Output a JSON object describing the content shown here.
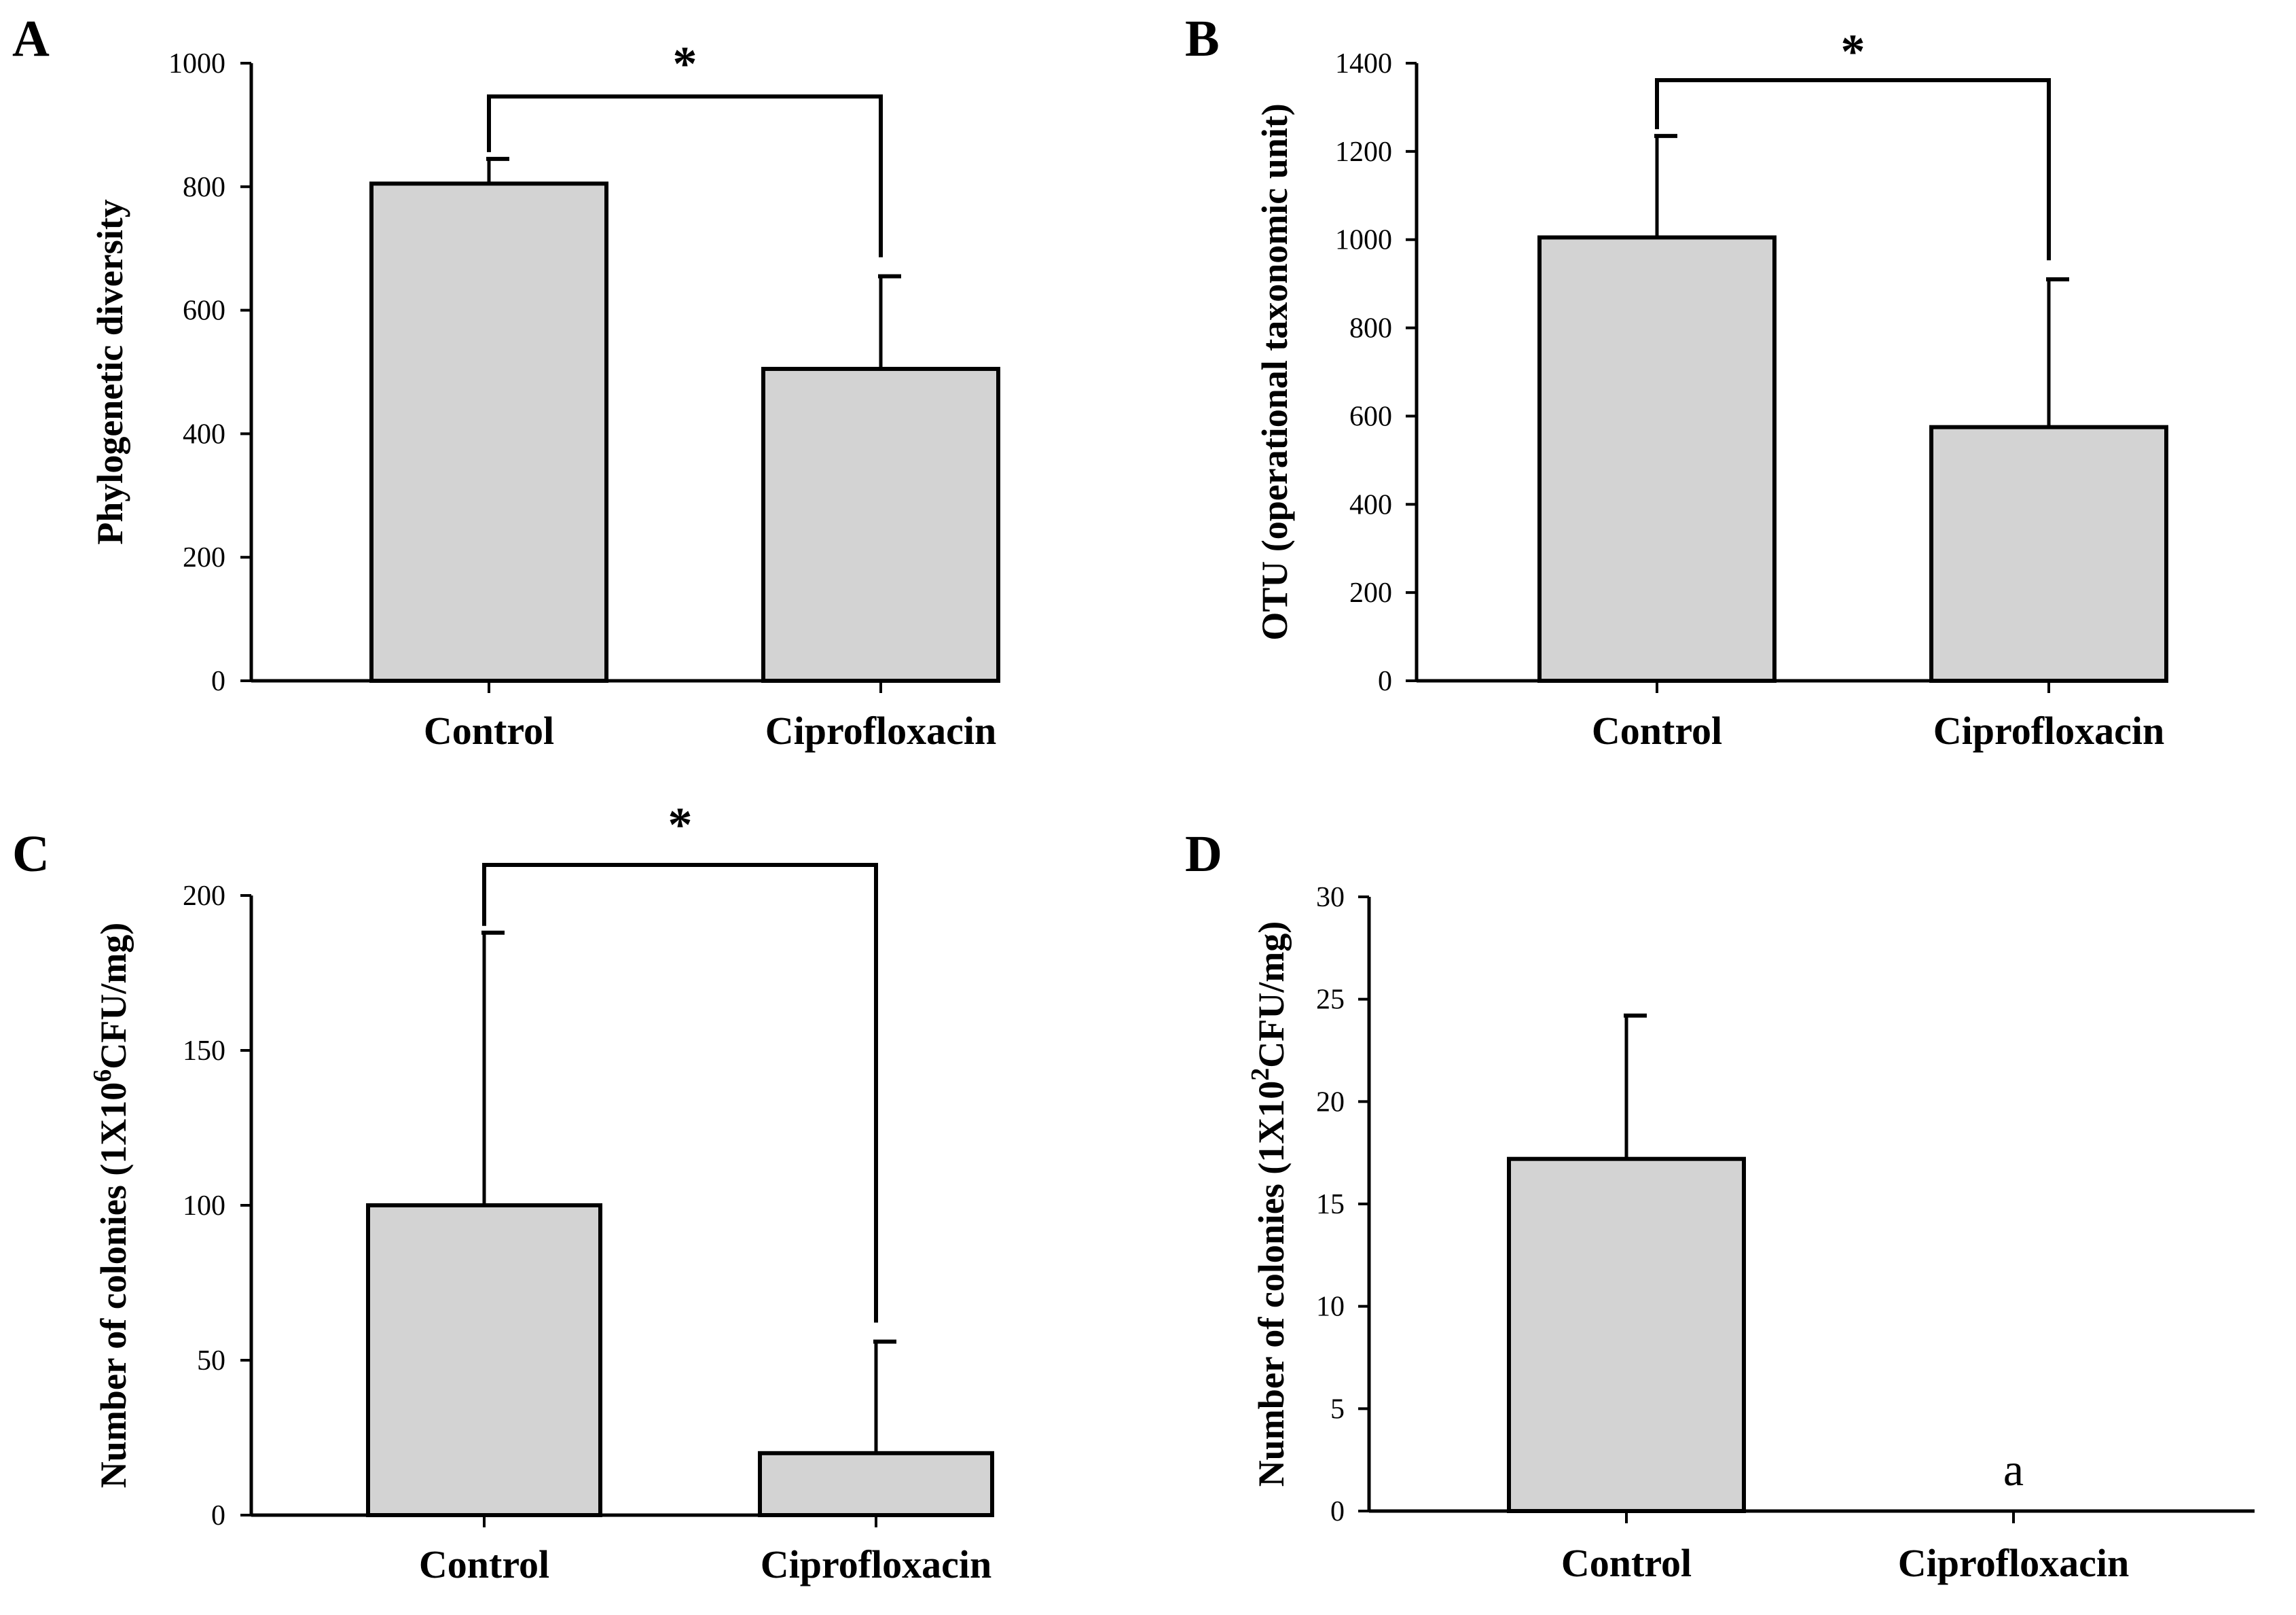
{
  "chart_data": [
    {
      "panel": "A",
      "type": "bar",
      "categories": [
        "Control",
        "Ciprofloxacin"
      ],
      "values": [
        805,
        505
      ],
      "error_upper": [
        845,
        655
      ],
      "ylabel": "Phylogenetic diversity",
      "ylim": [
        0,
        1000
      ],
      "yticks": [
        "0",
        "200",
        "400",
        "600",
        "800",
        "1000"
      ],
      "significance": "*",
      "annotation": "",
      "bar_color": "#d3d3d3"
    },
    {
      "panel": "B",
      "type": "bar",
      "categories": [
        "Control",
        "Ciprofloxacin"
      ],
      "values": [
        1005,
        575
      ],
      "error_upper": [
        1235,
        910
      ],
      "ylabel": "OTU (operational taxonomic unit)",
      "ylim": [
        0,
        1400
      ],
      "yticks": [
        "0",
        "200",
        "400",
        "600",
        "800",
        "1000",
        "1200",
        "1400"
      ],
      "significance": "*",
      "annotation": "",
      "bar_color": "#d3d3d3"
    },
    {
      "panel": "C",
      "type": "bar",
      "categories": [
        "Control",
        "Ciprofloxacin"
      ],
      "values": [
        100,
        20
      ],
      "error_upper": [
        188,
        56
      ],
      "ylabel_prefix": "Number of colonies (1X10",
      "ylabel_sup": "6",
      "ylabel_suffix": "CFU/mg)",
      "ylim": [
        0,
        200
      ],
      "yticks": [
        "0",
        "50",
        "100",
        "150",
        "200"
      ],
      "significance": "*",
      "annotation": "",
      "bar_color": "#d3d3d3"
    },
    {
      "panel": "D",
      "type": "bar",
      "categories": [
        "Control",
        "Ciprofloxacin"
      ],
      "values": [
        17.2,
        0
      ],
      "error_upper": [
        24.2,
        0
      ],
      "ylabel_prefix": "Number of colonies (1X10",
      "ylabel_sup": "2",
      "ylabel_suffix": "CFU/mg)",
      "ylim": [
        0,
        30
      ],
      "yticks": [
        "0",
        "5",
        "10",
        "15",
        "20",
        "25",
        "30"
      ],
      "significance": "",
      "annotation": "a",
      "bar_color": "#d3d3d3"
    }
  ]
}
